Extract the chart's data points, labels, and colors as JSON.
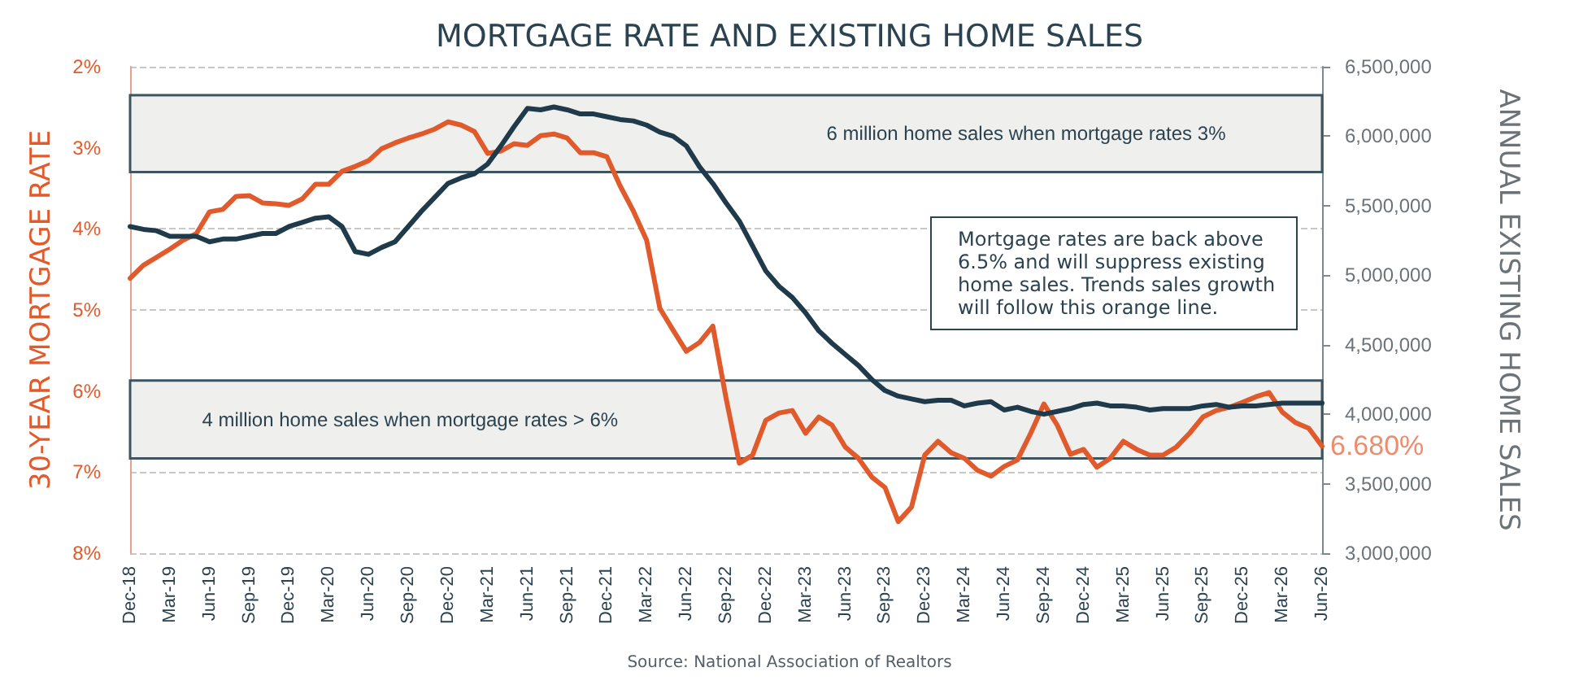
{
  "chart_data": {
    "type": "line",
    "title": "MORTGAGE RATE AND EXISTING HOME SALES",
    "ylabel": "30-YEAR MORTGAGE RATE",
    "y2label": "ANNUAL EXISTING HOME SALES",
    "annotations": [
      "Mortgage rates are back above 6.5% and will suppress existing home sales.  Trends sales growth will follow this orange line.",
      "Source: National Association of Realtors"
    ],
    "categories": [
      "Dec-18",
      null,
      null,
      "Mar-19",
      null,
      null,
      "Jun-19",
      null,
      null,
      "Sep-19",
      null,
      null,
      "Dec-19",
      null,
      null,
      "Mar-20",
      null,
      null,
      "Jun-20",
      null,
      null,
      "Sep-20",
      null,
      null,
      "Dec-20",
      null,
      null,
      "Mar-21",
      null,
      null,
      "Jun-21",
      null,
      null,
      "Sep-21",
      null,
      null,
      "Dec-21",
      null,
      null,
      "Mar-22",
      null,
      null,
      "Jun-22",
      null,
      null,
      "Sep-22",
      null,
      null,
      "Dec-22",
      null,
      null,
      "Mar-23",
      null,
      null,
      "Jun-23",
      null,
      null,
      "Sep-23",
      null,
      null,
      "Dec-23",
      null,
      null,
      "Mar-24",
      null,
      null,
      "Jun-24",
      null,
      null,
      "Sep-24",
      null,
      null,
      "Dec-24",
      null,
      null,
      "Mar-25",
      null,
      null,
      "Jun-25",
      null,
      null,
      "Sep-25",
      null,
      null,
      "Dec-25",
      null,
      null,
      "Mar-26",
      null,
      null,
      "Jun-26"
    ],
    "series": [
      {
        "color": "#e05a2b",
        "values": [
          4.61,
          4.45,
          4.35,
          4.25,
          4.14,
          4.06,
          3.79,
          3.76,
          3.6,
          3.59,
          3.68,
          3.69,
          3.71,
          3.63,
          3.45,
          3.45,
          3.29,
          3.23,
          3.16,
          3.01,
          2.94,
          2.88,
          2.83,
          2.77,
          2.68,
          2.72,
          2.8,
          3.07,
          3.04,
          2.95,
          2.97,
          2.85,
          2.83,
          2.88,
          3.06,
          3.06,
          3.11,
          3.47,
          3.78,
          4.14,
          4.98,
          5.25,
          5.51,
          5.4,
          5.2,
          6.09,
          6.89,
          6.79,
          6.36,
          6.27,
          6.24,
          6.52,
          6.32,
          6.42,
          6.69,
          6.83,
          7.06,
          7.19,
          7.61,
          7.43,
          6.79,
          6.62,
          6.76,
          6.83,
          6.98,
          7.05,
          6.93,
          6.85,
          6.52,
          6.16,
          6.42,
          6.78,
          6.72,
          6.94,
          6.83,
          6.62,
          6.72,
          6.79,
          6.79,
          6.69,
          6.52,
          6.32,
          6.24,
          6.2,
          6.14,
          6.07,
          6.02,
          6.26,
          6.39,
          6.46,
          6.68
        ],
        "value_labels": [
          null,
          null,
          null,
          null,
          null,
          null,
          null,
          null,
          null,
          null,
          null,
          null,
          null,
          null,
          null,
          null,
          null,
          null,
          null,
          null,
          null,
          null,
          null,
          null,
          null,
          null,
          null,
          null,
          null,
          null,
          null,
          null,
          null,
          null,
          null,
          null,
          null,
          null,
          null,
          null,
          null,
          null,
          null,
          null,
          null,
          null,
          null,
          null,
          null,
          null,
          null,
          null,
          null,
          null,
          null,
          null,
          null,
          null,
          null,
          null,
          null,
          null,
          null,
          null,
          null,
          null,
          null,
          null,
          null,
          null,
          null,
          null,
          null,
          null,
          null,
          null,
          null,
          null,
          null,
          null,
          null,
          null,
          null,
          null,
          null,
          null,
          null,
          null,
          null,
          null,
          "6.680%"
        ]
      },
      {
        "color": "#1f3a4a",
        "axis": "y2",
        "values": [
          5350000,
          5330000,
          5320000,
          5280000,
          5280000,
          5280000,
          5240000,
          5260000,
          5260000,
          5280000,
          5300000,
          5300000,
          5350000,
          5380000,
          5410000,
          5420000,
          5350000,
          5170000,
          5150000,
          5200000,
          5240000,
          5350000,
          5460000,
          5560000,
          5660000,
          5700000,
          5730000,
          5800000,
          5930000,
          6070000,
          6200000,
          6190000,
          6210000,
          6190000,
          6160000,
          6160000,
          6140000,
          6120000,
          6110000,
          6080000,
          6030000,
          6000000,
          5930000,
          5780000,
          5660000,
          5520000,
          5390000,
          5210000,
          5030000,
          4920000,
          4840000,
          4730000,
          4600000,
          4510000,
          4430000,
          4350000,
          4250000,
          4170000,
          4130000,
          4110000,
          4090000,
          4100000,
          4100000,
          4060000,
          4080000,
          4090000,
          4030000,
          4050000,
          4020000,
          4000000,
          4020000,
          4040000,
          4070000,
          4080000,
          4060000,
          4060000,
          4050000,
          4030000,
          4040000,
          4040000,
          4040000,
          4060000,
          4070000,
          4050000,
          4060000,
          4060000,
          4070000,
          4080000,
          4080000,
          4080000,
          4080000
        ]
      }
    ],
    "ylim": [
      8,
      2
    ],
    "yticks": [
      {
        "value": 2,
        "label": "2%"
      },
      {
        "value": 3,
        "label": "3%"
      },
      {
        "value": 4,
        "label": "4%"
      },
      {
        "value": 5,
        "label": "5%"
      },
      {
        "value": 6,
        "label": "6%"
      },
      {
        "value": 7,
        "label": "7%"
      },
      {
        "value": 8,
        "label": "8%"
      }
    ],
    "y2lim": [
      3000000,
      6500000
    ],
    "y2ticks": [
      {
        "value": 3000000,
        "label": "3,000,000"
      },
      {
        "value": 3500000,
        "label": "3,500,000"
      },
      {
        "value": 4000000,
        "label": "4,000,000"
      },
      {
        "value": 4500000,
        "label": "4,500,000"
      },
      {
        "value": 5000000,
        "label": "5,000,000"
      },
      {
        "value": 5500000,
        "label": "5,500,000"
      },
      {
        "value": 6000000,
        "label": "6,000,000"
      },
      {
        "value": 6500000,
        "label": "6,500,000"
      }
    ],
    "bands": [
      {
        "axis": "y",
        "from": 2.35,
        "to": 3.3,
        "label": "6 million home sales when mortgage rates 3%",
        "color": "#efefed"
      },
      {
        "axis": "y",
        "from": 5.87,
        "to": 6.83,
        "label": "4 million home sales when mortgage rates > 6%",
        "color": "#efefed"
      }
    ],
    "grid": "y",
    "marker": "none",
    "line_style": "solid"
  }
}
